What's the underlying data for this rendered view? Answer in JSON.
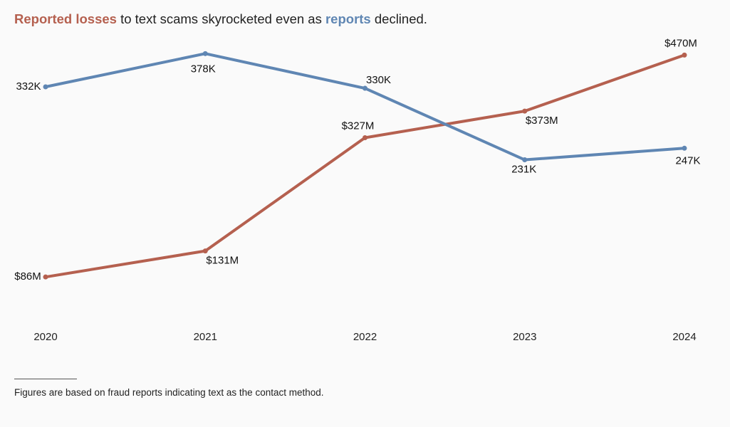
{
  "chart_data": {
    "type": "line",
    "title_segments": [
      " to text scams skyrocketed even as ",
      " declined."
    ],
    "categories": [
      "2020",
      "2021",
      "2022",
      "2023",
      "2024"
    ],
    "series": [
      {
        "name": "Reported losses",
        "color": "#b5604f",
        "values": [
          86,
          131,
          327,
          373,
          470
        ],
        "value_labels": [
          "$86M",
          "$131M",
          "$327M",
          "$373M",
          "$470M"
        ]
      },
      {
        "name": "reports",
        "color": "#5f86b3",
        "axis": "y2",
        "values": [
          332,
          378,
          330,
          231,
          247
        ],
        "value_labels": [
          "332K",
          "378K",
          "330K",
          "231K",
          "247K"
        ]
      }
    ],
    "ylim": [
      0,
      500
    ],
    "y2lim": [
      0,
      400
    ],
    "grid": false,
    "footnote": "Figures are based on fraud reports indicating text as the contact method."
  }
}
